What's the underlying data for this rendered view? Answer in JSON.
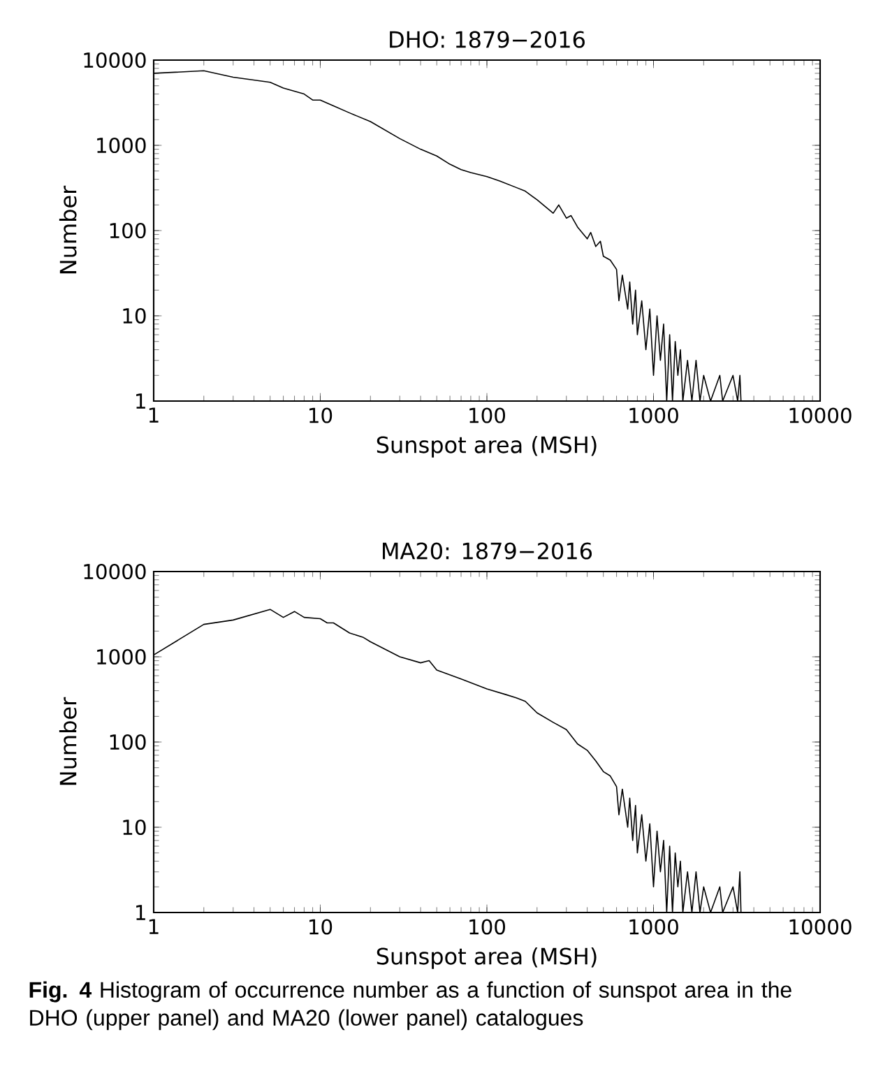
{
  "chart_data": [
    {
      "type": "line",
      "title": "DHO: 1879−2016",
      "xlabel": "Sunspot area (MSH)",
      "ylabel": "Number",
      "log": "xy",
      "xlim": [
        1,
        10000
      ],
      "ylim": [
        1,
        10000
      ],
      "xticks": [
        1,
        10,
        100,
        1000,
        10000
      ],
      "yticks": [
        1,
        10,
        100,
        1000,
        10000
      ],
      "series": [
        {
          "color": "#000000",
          "x": [
            1,
            2,
            3,
            5,
            6,
            8,
            9,
            10,
            12,
            15,
            20,
            30,
            40,
            50,
            60,
            70,
            80,
            100,
            120,
            150,
            170,
            200,
            250,
            270,
            300,
            320,
            350,
            400,
            420,
            450,
            480,
            500,
            550,
            600,
            620,
            650,
            700,
            720,
            750,
            780,
            800,
            850,
            900,
            950,
            1000,
            1050,
            1100,
            1150,
            1200,
            1250,
            1300,
            1350,
            1400,
            1450,
            1500,
            1600,
            1700,
            1800,
            1900,
            2000,
            2200,
            2500,
            2600,
            3000,
            3200,
            3300,
            3350
          ],
          "values": [
            7000,
            7500,
            6300,
            5500,
            4700,
            4000,
            3400,
            3400,
            2900,
            2400,
            1900,
            1200,
            900,
            750,
            600,
            520,
            480,
            430,
            380,
            320,
            290,
            230,
            160,
            200,
            140,
            150,
            110,
            80,
            95,
            65,
            75,
            50,
            45,
            35,
            15,
            30,
            12,
            25,
            8,
            20,
            6,
            15,
            4,
            12,
            2,
            10,
            3,
            8,
            1,
            6,
            1,
            5,
            2,
            4,
            1,
            3,
            1,
            3,
            1,
            2,
            1,
            2,
            1,
            2,
            1,
            2,
            1
          ]
        }
      ]
    },
    {
      "type": "line",
      "title": "MA20: 1879−2016",
      "xlabel": "Sunspot area (MSH)",
      "ylabel": "Number",
      "log": "xy",
      "xlim": [
        1,
        10000
      ],
      "ylim": [
        1,
        10000
      ],
      "xticks": [
        1,
        10,
        100,
        1000,
        10000
      ],
      "yticks": [
        1,
        10,
        100,
        1000,
        10000
      ],
      "annotations": [
        "**Fig. 4** Histogram of occurrence number as a function of sunspot area in the DHO (upper panel) and MA20 (lower panel) catalogues"
      ],
      "series": [
        {
          "color": "#000000",
          "x": [
            1,
            2,
            3,
            5,
            6,
            7,
            8,
            10,
            11,
            12,
            15,
            18,
            20,
            30,
            40,
            45,
            50,
            70,
            100,
            130,
            150,
            170,
            200,
            250,
            300,
            350,
            400,
            450,
            500,
            550,
            600,
            620,
            650,
            700,
            720,
            750,
            780,
            800,
            850,
            900,
            950,
            1000,
            1050,
            1100,
            1150,
            1200,
            1250,
            1300,
            1350,
            1400,
            1450,
            1500,
            1600,
            1700,
            1800,
            1900,
            2000,
            2200,
            2500,
            2600,
            3000,
            3200,
            3300,
            3350
          ],
          "values": [
            1050,
            2400,
            2700,
            3600,
            2900,
            3400,
            2900,
            2800,
            2500,
            2500,
            1900,
            1700,
            1500,
            1000,
            850,
            900,
            700,
            550,
            420,
            360,
            330,
            300,
            220,
            170,
            140,
            95,
            80,
            60,
            45,
            40,
            30,
            14,
            28,
            10,
            22,
            7,
            18,
            5,
            14,
            4,
            11,
            2,
            9,
            3,
            7,
            1,
            6,
            1,
            5,
            2,
            4,
            1,
            3,
            1,
            3,
            1,
            2,
            1,
            2,
            1,
            2,
            1,
            3,
            1
          ]
        }
      ]
    }
  ]
}
